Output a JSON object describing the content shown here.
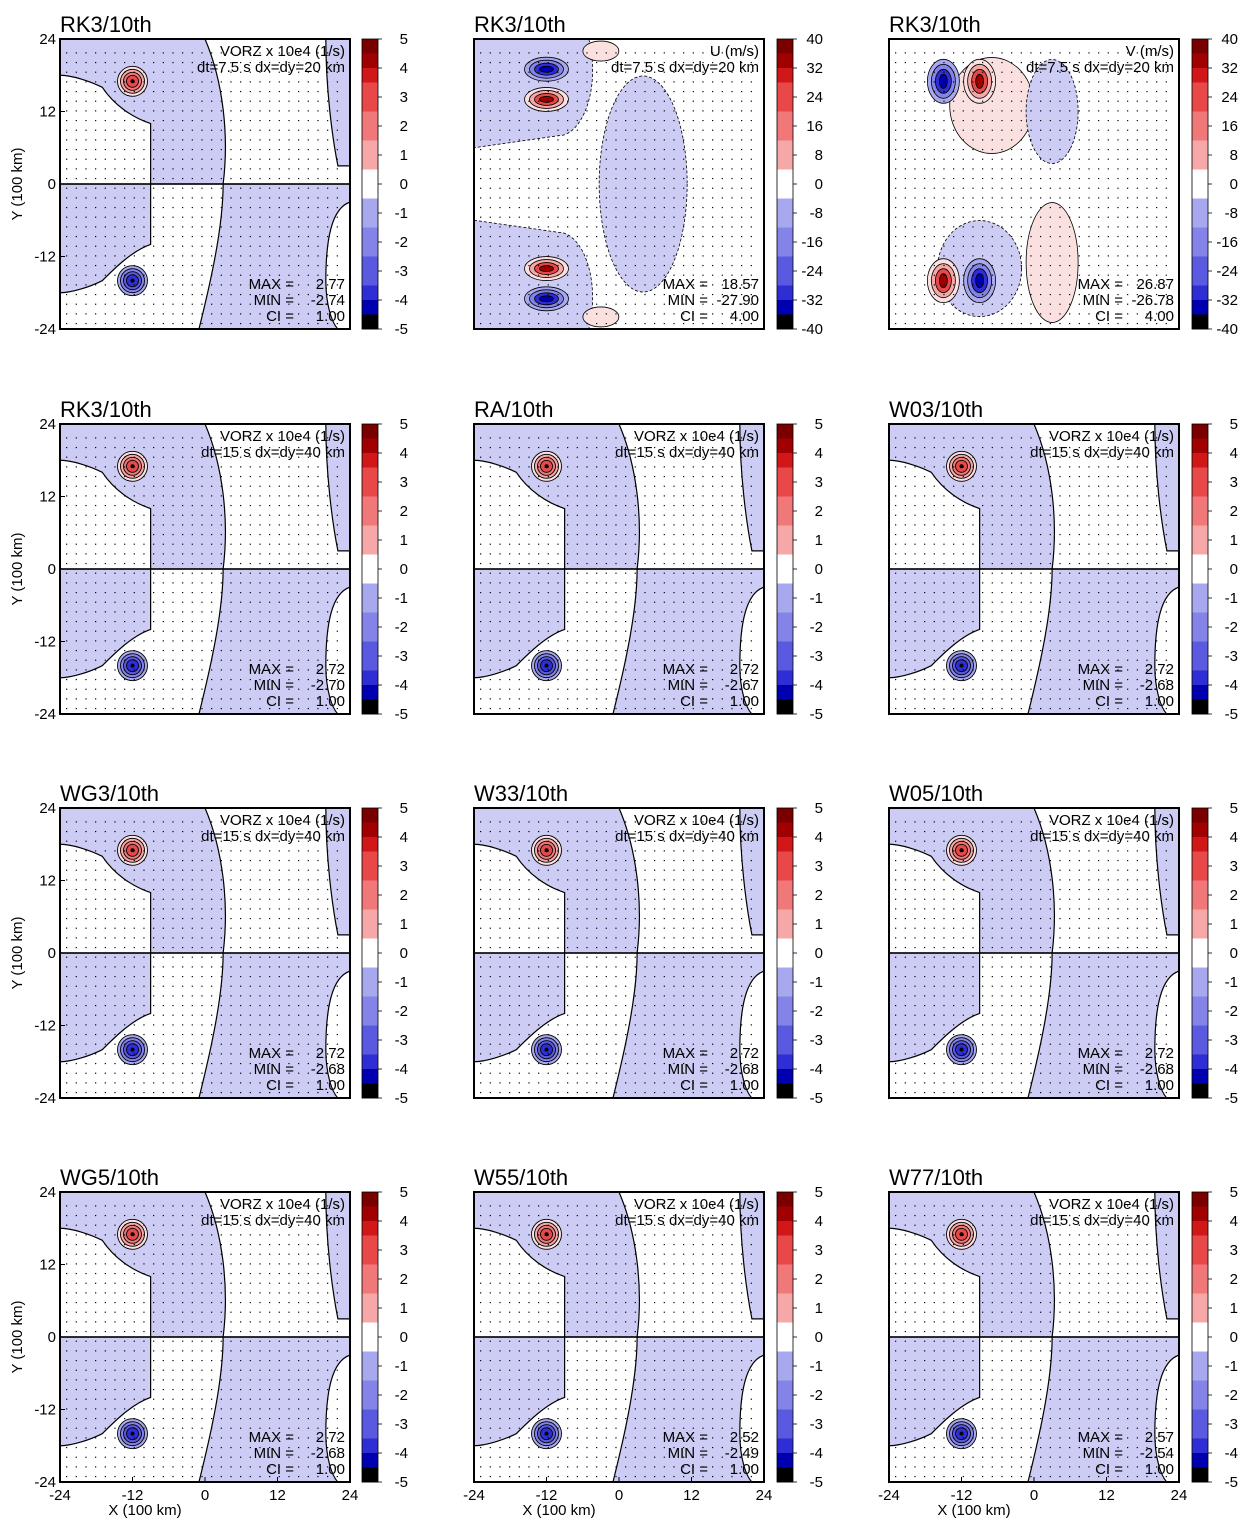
{
  "figure": {
    "xlabel": "X (100 km)",
    "ylabel": "Y (100 km)",
    "ticks": [
      "-24",
      "-12",
      "0",
      "12",
      "24"
    ],
    "colors": {
      "land": "#ffffff",
      "pos": [
        "#fbe0e0",
        "#f6a8a8",
        "#f07878",
        "#e84848",
        "#d01818",
        "#a00000",
        "#7a0000"
      ],
      "neg": [
        "#ccccf4",
        "#a8a8ee",
        "#8484e8",
        "#5a5ae0",
        "#2e2ed4",
        "#0000b0",
        "#000080"
      ],
      "zero_fill": "#ffffff",
      "bottom_cap": "#000000"
    }
  },
  "chart_data": [
    {
      "type": "heatmap",
      "title": "RK3/10th",
      "field": "VORZ x 10e4 (1/s)",
      "setup": "dt=7.5 s dx=dy=20 km",
      "max": "2.77",
      "min": "-2.74",
      "ci": "1.00",
      "xlim": [
        -24,
        24
      ],
      "ylim": [
        -24,
        24
      ],
      "colorbar": [
        "5",
        "4",
        "3",
        "2",
        "1",
        "0",
        "-1",
        "-2",
        "-3",
        "-4",
        "-5"
      ],
      "vortices": [
        {
          "x": -12,
          "y": 17,
          "sign": "+"
        },
        {
          "x": -12,
          "y": -16,
          "sign": "-"
        }
      ]
    },
    {
      "type": "heatmap",
      "title": "RK3/10th",
      "field": "U (m/s)",
      "setup": "dt=7.5 s dx=dy=20 km",
      "max": "18.57",
      "min": "-27.90",
      "ci": "4.00",
      "xlim": [
        -24,
        24
      ],
      "ylim": [
        -24,
        24
      ],
      "colorbar": [
        "40",
        "32",
        "24",
        "16",
        "8",
        "0",
        "-8",
        "-16",
        "-24",
        "-32",
        "-40"
      ],
      "vortices": [
        {
          "x": -12,
          "y": 19,
          "sign": "-"
        },
        {
          "x": -12,
          "y": 14,
          "sign": "+"
        },
        {
          "x": -12,
          "y": -14,
          "sign": "+"
        },
        {
          "x": -12,
          "y": -19,
          "sign": "-"
        }
      ]
    },
    {
      "type": "heatmap",
      "title": "RK3/10th",
      "field": "V (m/s)",
      "setup": "dt=7.5 s dx=dy=20 km",
      "max": "26.87",
      "min": "-26.78",
      "ci": "4.00",
      "xlim": [
        -24,
        24
      ],
      "ylim": [
        -24,
        24
      ],
      "colorbar": [
        "40",
        "32",
        "24",
        "16",
        "8",
        "0",
        "-8",
        "-16",
        "-24",
        "-32",
        "-40"
      ],
      "vortices": [
        {
          "x": -15,
          "y": 17,
          "sign": "-"
        },
        {
          "x": -9,
          "y": 17,
          "sign": "+"
        },
        {
          "x": -15,
          "y": -16,
          "sign": "+"
        },
        {
          "x": -9,
          "y": -16,
          "sign": "-"
        }
      ]
    },
    {
      "type": "heatmap",
      "title": "RK3/10th",
      "field": "VORZ x 10e4 (1/s)",
      "setup": "dt=15 s dx=dy=40 km",
      "max": "2.72",
      "min": "-2.70",
      "ci": "1.00",
      "xlim": [
        -24,
        24
      ],
      "ylim": [
        -24,
        24
      ],
      "colorbar": [
        "5",
        "4",
        "3",
        "2",
        "1",
        "0",
        "-1",
        "-2",
        "-3",
        "-4",
        "-5"
      ],
      "vortices": [
        {
          "x": -12,
          "y": 17,
          "sign": "+"
        },
        {
          "x": -12,
          "y": -16,
          "sign": "-"
        }
      ]
    },
    {
      "type": "heatmap",
      "title": "RA/10th",
      "field": "VORZ x 10e4 (1/s)",
      "setup": "dt=15 s dx=dy=40 km",
      "max": "2.72",
      "min": "-2.67",
      "ci": "1.00",
      "xlim": [
        -24,
        24
      ],
      "ylim": [
        -24,
        24
      ],
      "colorbar": [
        "5",
        "4",
        "3",
        "2",
        "1",
        "0",
        "-1",
        "-2",
        "-3",
        "-4",
        "-5"
      ],
      "vortices": [
        {
          "x": -12,
          "y": 17,
          "sign": "+"
        },
        {
          "x": -12,
          "y": -16,
          "sign": "-"
        }
      ]
    },
    {
      "type": "heatmap",
      "title": "W03/10th",
      "field": "VORZ x 10e4 (1/s)",
      "setup": "dt=15 s dx=dy=40 km",
      "max": "2.72",
      "min": "-2.68",
      "ci": "1.00",
      "xlim": [
        -24,
        24
      ],
      "ylim": [
        -24,
        24
      ],
      "colorbar": [
        "5",
        "4",
        "3",
        "2",
        "1",
        "0",
        "-1",
        "-2",
        "-3",
        "-4",
        "-5"
      ],
      "vortices": [
        {
          "x": -12,
          "y": 17,
          "sign": "+"
        },
        {
          "x": -12,
          "y": -16,
          "sign": "-"
        }
      ]
    },
    {
      "type": "heatmap",
      "title": "WG3/10th",
      "field": "VORZ x 10e4 (1/s)",
      "setup": "dt=15 s dx=dy=40 km",
      "max": "2.72",
      "min": "-2.68",
      "ci": "1.00",
      "xlim": [
        -24,
        24
      ],
      "ylim": [
        -24,
        24
      ],
      "colorbar": [
        "5",
        "4",
        "3",
        "2",
        "1",
        "0",
        "-1",
        "-2",
        "-3",
        "-4",
        "-5"
      ],
      "vortices": [
        {
          "x": -12,
          "y": 17,
          "sign": "+"
        },
        {
          "x": -12,
          "y": -16,
          "sign": "-"
        }
      ]
    },
    {
      "type": "heatmap",
      "title": "W33/10th",
      "field": "VORZ x 10e4 (1/s)",
      "setup": "dt=15 s dx=dy=40 km",
      "max": "2.72",
      "min": "-2.68",
      "ci": "1.00",
      "xlim": [
        -24,
        24
      ],
      "ylim": [
        -24,
        24
      ],
      "colorbar": [
        "5",
        "4",
        "3",
        "2",
        "1",
        "0",
        "-1",
        "-2",
        "-3",
        "-4",
        "-5"
      ],
      "vortices": [
        {
          "x": -12,
          "y": 17,
          "sign": "+"
        },
        {
          "x": -12,
          "y": -16,
          "sign": "-"
        }
      ]
    },
    {
      "type": "heatmap",
      "title": "W05/10th",
      "field": "VORZ x 10e4 (1/s)",
      "setup": "dt=15 s dx=dy=40 km",
      "max": "2.72",
      "min": "-2.68",
      "ci": "1.00",
      "xlim": [
        -24,
        24
      ],
      "ylim": [
        -24,
        24
      ],
      "colorbar": [
        "5",
        "4",
        "3",
        "2",
        "1",
        "0",
        "-1",
        "-2",
        "-3",
        "-4",
        "-5"
      ],
      "vortices": [
        {
          "x": -12,
          "y": 17,
          "sign": "+"
        },
        {
          "x": -12,
          "y": -16,
          "sign": "-"
        }
      ]
    },
    {
      "type": "heatmap",
      "title": "WG5/10th",
      "field": "VORZ x 10e4 (1/s)",
      "setup": "dt=15 s dx=dy=40 km",
      "max": "2.72",
      "min": "-2.68",
      "ci": "1.00",
      "xlim": [
        -24,
        24
      ],
      "ylim": [
        -24,
        24
      ],
      "colorbar": [
        "5",
        "4",
        "3",
        "2",
        "1",
        "0",
        "-1",
        "-2",
        "-3",
        "-4",
        "-5"
      ],
      "vortices": [
        {
          "x": -12,
          "y": 17,
          "sign": "+"
        },
        {
          "x": -12,
          "y": -16,
          "sign": "-"
        }
      ]
    },
    {
      "type": "heatmap",
      "title": "W55/10th",
      "field": "VORZ x 10e4 (1/s)",
      "setup": "dt=15 s dx=dy=40 km",
      "max": "2.52",
      "min": "-2.49",
      "ci": "1.00",
      "xlim": [
        -24,
        24
      ],
      "ylim": [
        -24,
        24
      ],
      "colorbar": [
        "5",
        "4",
        "3",
        "2",
        "1",
        "0",
        "-1",
        "-2",
        "-3",
        "-4",
        "-5"
      ],
      "vortices": [
        {
          "x": -12,
          "y": 17,
          "sign": "+"
        },
        {
          "x": -12,
          "y": -16,
          "sign": "-"
        }
      ]
    },
    {
      "type": "heatmap",
      "title": "W77/10th",
      "field": "VORZ x 10e4 (1/s)",
      "setup": "dt=15 s dx=dy=40 km",
      "max": "2.57",
      "min": "-2.54",
      "ci": "1.00",
      "xlim": [
        -24,
        24
      ],
      "ylim": [
        -24,
        24
      ],
      "colorbar": [
        "5",
        "4",
        "3",
        "2",
        "1",
        "0",
        "-1",
        "-2",
        "-3",
        "-4",
        "-5"
      ],
      "vortices": [
        {
          "x": -12,
          "y": 17,
          "sign": "+"
        },
        {
          "x": -12,
          "y": -16,
          "sign": "-"
        }
      ]
    }
  ]
}
